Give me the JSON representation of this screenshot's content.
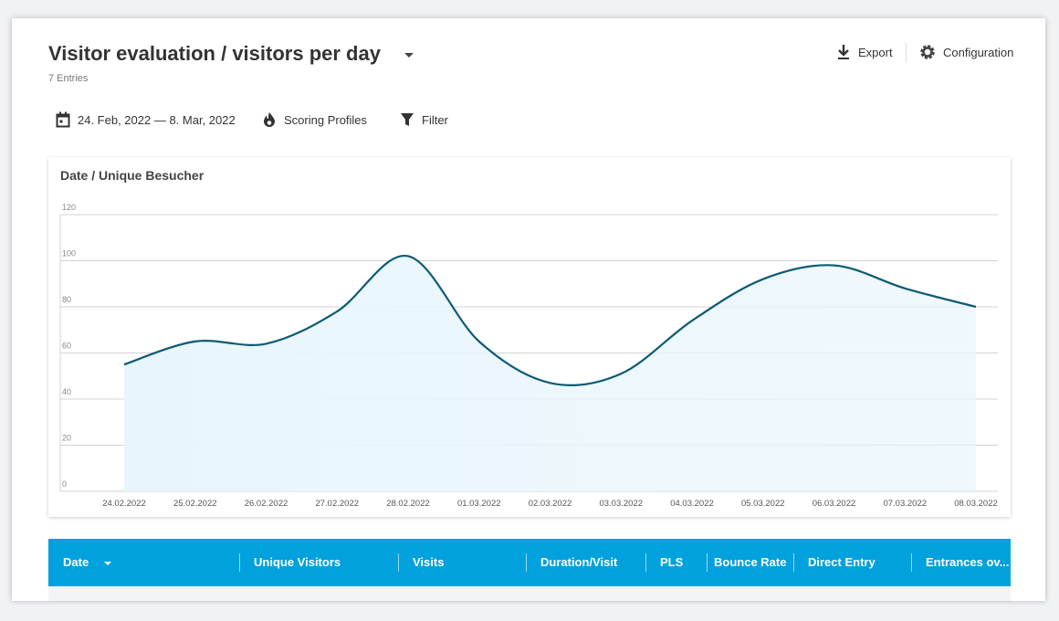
{
  "header": {
    "title": "Visitor evaluation / visitors per day",
    "subtitle": "7 Entries",
    "export": "Export",
    "configuration": "Configuration"
  },
  "toolbar": {
    "date_range": "24. Feb, 2022 — 8. Mar, 2022",
    "scoring": "Scoring Profiles",
    "filter": "Filter"
  },
  "chart_data": {
    "type": "area",
    "title": "Date / Unique Besucher",
    "categories": [
      "24.02.2022",
      "25.02.2022",
      "26.02.2022",
      "27.02.2022",
      "28.02.2022",
      "01.03.2022",
      "02.03.2022",
      "03.03.2022",
      "04.03.2022",
      "05.03.2022",
      "06.03.2022",
      "07.03.2022",
      "08.03.2022"
    ],
    "values": [
      55,
      65,
      64,
      78,
      102,
      65,
      47,
      51,
      74,
      92,
      98,
      88,
      80
    ],
    "color": "#0d5a73",
    "fill": "#e8f6fc",
    "ylim": [
      0,
      120
    ],
    "yticks": [
      0,
      20,
      40,
      60,
      80,
      100,
      120
    ],
    "grid": true
  },
  "table": {
    "columns": [
      "Date",
      "Unique Visitors",
      "Visits",
      "Duration/Visit",
      "PLS",
      "Bounce Rate",
      "Direct Entry",
      "Entrances ov..."
    ]
  }
}
